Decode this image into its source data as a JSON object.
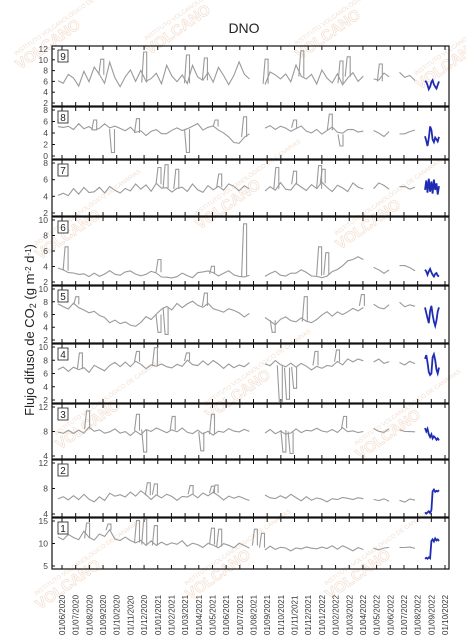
{
  "chart_data": {
    "type": "line",
    "title": "DNO",
    "ylabel_parts": [
      "Flujo difuso de CO",
      "2",
      " (g m",
      "-2",
      " d",
      "-1",
      ")"
    ],
    "x": {
      "tick_labels": [
        "01/06/2020",
        "01/07/2020",
        "01/08/2020",
        "01/09/2020",
        "01/10/2020",
        "01/11/2020",
        "01/12/2020",
        "01/01/2021",
        "01/02/2021",
        "01/03/2021",
        "01/04/2021",
        "01/05/2021",
        "01/06/2021",
        "01/07/2021",
        "01/08/2021",
        "01/09/2021",
        "01/10/2021",
        "01/11/2021",
        "01/12/2021",
        "01/01/2022",
        "01/02/2022",
        "01/03/2022",
        "01/04/2022",
        "01/05/2022",
        "01/06/2022",
        "01/07/2022",
        "01/08/2022",
        "01/09/2022",
        "01/10/2022"
      ],
      "start": "2020-06-01",
      "end": "2022-10-10"
    },
    "watermark_text": "INSTITUTO VOLCANOLÓGICO DE CANARIAS",
    "watermark_big": "VOLCANO",
    "recent_color": "#1f2bb3",
    "series_color": "#9a9a9a",
    "panels": [
      {
        "label": "9",
        "ylim": [
          2,
          12
        ],
        "yticks": [
          "12",
          "10",
          "8",
          "6",
          "4",
          "2"
        ],
        "recent": [
          6.2,
          6.0,
          5.5,
          4.8,
          5.2,
          6.0,
          6.3,
          5.6,
          5.2,
          4.9,
          5.5,
          6.1
        ],
        "base": [
          6.2,
          5.8,
          7.0,
          6.5,
          5.2,
          7.5,
          6.0,
          8.5,
          7.2,
          6.0,
          9.5,
          6.8,
          5.5,
          7.0,
          8.0,
          6.2,
          7.8,
          5.9,
          6.5,
          7.2,
          5.5,
          8.8,
          6.9,
          6.1,
          7.4,
          5.8,
          9.0,
          7.1,
          6.3,
          7.7,
          6.0,
          8.2,
          7.0,
          5.4,
          6.8,
          9.3,
          7.2,
          6.4,
          7.9,
          6.1,
          5.7,
          8.0,
          7.3,
          6.6,
          7.5,
          5.9,
          8.7,
          6.9,
          6.2,
          7.1,
          5.6,
          7.8,
          6.7,
          6.0,
          7.4,
          5.8,
          6.9,
          7.6,
          6.3,
          7.0,
          5.4,
          6.5,
          6.1,
          7.2,
          6.8,
          6.6,
          7.5,
          6.9,
          7.1,
          6.4
        ],
        "spikes": [
          [
            0.12,
            9.8
          ],
          [
            0.24,
            11
          ],
          [
            0.36,
            10.5
          ],
          [
            0.41,
            10
          ],
          [
            0.58,
            9.8
          ],
          [
            0.68,
            11.2
          ],
          [
            0.79,
            9.5
          ],
          [
            0.81,
            10.2
          ],
          [
            0.9,
            9
          ]
        ]
      },
      {
        "label": "8",
        "ylim": [
          0,
          8
        ],
        "yticks": [
          "8",
          "6",
          "4",
          "2",
          "0"
        ],
        "recent": [
          3.5,
          2.8,
          2.0,
          3.2,
          5.0,
          4.5,
          3.0,
          2.6,
          3.3,
          3.0,
          2.7,
          3.4
        ],
        "base": [
          5.0,
          4.8,
          5.2,
          4.7,
          5.5,
          4.9,
          5.1,
          4.4,
          4.8,
          5.3,
          4.6,
          5.0,
          4.5,
          4.2,
          4.9,
          4.0,
          4.4,
          3.8,
          4.3,
          4.7,
          4.1,
          3.9,
          4.5,
          4.8,
          4.2,
          4.6,
          4.9,
          5.2,
          4.4,
          4.8,
          5.0,
          4.6,
          4.1,
          3.5,
          2.8,
          2.5,
          3.4,
          4.0,
          4.5,
          4.2,
          4.7,
          4.9,
          4.4,
          5.0,
          4.6,
          4.3,
          4.8,
          5.1,
          4.5,
          4.2,
          4.6,
          4.0,
          4.4,
          4.8,
          4.1,
          3.8,
          4.3,
          4.5,
          4.0,
          4.2,
          3.9,
          4.4,
          4.1,
          3.7,
          4.3,
          4.6,
          4.0,
          3.8,
          4.2,
          4.4
        ],
        "spikes": [
          [
            0.1,
            6.0
          ],
          [
            0.15,
            1.0
          ],
          [
            0.22,
            6.2
          ],
          [
            0.36,
            1.0
          ],
          [
            0.44,
            6.0
          ],
          [
            0.52,
            6.5
          ],
          [
            0.66,
            6.0
          ],
          [
            0.76,
            6.9
          ],
          [
            0.79,
            2.0
          ]
        ]
      },
      {
        "label": "7",
        "ylim": [
          2,
          8
        ],
        "yticks": [
          "8",
          "6",
          "4",
          "2"
        ],
        "recent": [
          4.8,
          5.8,
          4.5,
          6.0,
          4.6,
          5.7,
          4.4,
          5.9,
          4.8,
          5.5,
          4.3,
          5.2
        ],
        "base": [
          4.2,
          4.5,
          4.1,
          4.8,
          4.3,
          4.9,
          4.4,
          4.6,
          5.0,
          4.5,
          5.3,
          4.8,
          4.6,
          5.1,
          4.7,
          5.5,
          4.9,
          5.2,
          4.6,
          5.4,
          4.8,
          5.0,
          4.5,
          4.9,
          5.2,
          4.7,
          5.5,
          5.0,
          4.6,
          5.3,
          4.9,
          5.1,
          4.7,
          5.4,
          5.0,
          4.6,
          5.2,
          4.8,
          5.5,
          5.1,
          4.7,
          5.3,
          4.9,
          5.6,
          5.0,
          4.8,
          5.4,
          5.1,
          4.6,
          5.2,
          4.9,
          5.5,
          5.0,
          4.7,
          5.3,
          5.1,
          4.8,
          5.6,
          5.2,
          5.0,
          5.4,
          4.9,
          5.5,
          5.1,
          4.8,
          5.3,
          5.0,
          5.2,
          4.9,
          5.1
        ],
        "spikes": [
          [
            0.28,
            7.2
          ],
          [
            0.3,
            7.5
          ],
          [
            0.33,
            7.0
          ],
          [
            0.45,
            6.5
          ],
          [
            0.61,
            7.2
          ],
          [
            0.66,
            6.8
          ],
          [
            0.73,
            7.4
          ],
          [
            0.74,
            7.0
          ]
        ]
      },
      {
        "label": "6",
        "ylim": [
          2,
          10
        ],
        "yticks": [
          "10",
          "8",
          "6",
          "4",
          "2"
        ],
        "recent": [
          3.8,
          3.6,
          3.2,
          3.6,
          3.9,
          3.5,
          3.2,
          3.0,
          3.3,
          3.4,
          3.1,
          3.0
        ],
        "base": [
          4.0,
          3.7,
          3.5,
          3.6,
          3.3,
          3.5,
          3.2,
          3.4,
          3.1,
          3.3,
          3.5,
          3.2,
          3.0,
          3.3,
          3.6,
          3.2,
          3.0,
          3.4,
          3.7,
          3.5,
          3.2,
          3.0,
          2.9,
          3.1,
          3.3,
          3.0,
          2.8,
          3.2,
          3.4,
          3.6,
          3.3,
          3.1,
          3.5,
          3.7,
          3.4,
          3.2,
          3.0,
          3.3,
          3.5,
          3.1,
          3.0,
          3.2,
          3.4,
          3.1,
          2.9,
          3.3,
          3.5,
          3.8,
          3.6,
          3.3,
          3.1,
          3.0,
          3.2,
          3.5,
          3.8,
          4.2,
          4.6,
          4.9,
          5.2,
          4.8,
          4.4,
          4.1,
          3.8,
          3.6,
          3.9,
          4.2,
          4.5,
          4.3,
          4.0,
          3.7
        ],
        "spikes": [
          [
            0.02,
            6.5
          ],
          [
            0.28,
            5.0
          ],
          [
            0.43,
            4.2
          ],
          [
            0.52,
            9.2
          ],
          [
            0.73,
            6.5
          ],
          [
            0.75,
            5.8
          ]
        ]
      },
      {
        "label": "5",
        "ylim": [
          2,
          10
        ],
        "yticks": [
          "10",
          "8",
          "6",
          "4",
          "2"
        ],
        "recent": [
          7.0,
          6.2,
          5.5,
          4.8,
          6.5,
          7.2,
          6.0,
          5.0,
          4.4,
          5.2,
          6.4,
          7.0
        ],
        "base": [
          7.5,
          7.2,
          6.8,
          7.4,
          6.9,
          6.5,
          6.0,
          6.4,
          5.8,
          5.5,
          5.0,
          5.3,
          4.8,
          5.2,
          4.6,
          4.4,
          5.0,
          5.6,
          5.2,
          6.0,
          6.5,
          7.0,
          6.6,
          7.4,
          7.0,
          7.6,
          7.9,
          7.5,
          7.2,
          7.6,
          7.0,
          6.6,
          6.2,
          6.8,
          6.4,
          6.0,
          5.6,
          6.0,
          5.4,
          5.0,
          5.6,
          5.2,
          4.8,
          5.4,
          5.8,
          5.3,
          4.9,
          5.5,
          5.0,
          4.6,
          5.2,
          5.8,
          6.2,
          5.8,
          6.4,
          6.0,
          6.6,
          7.0,
          6.6,
          7.2,
          6.8,
          7.4,
          7.0,
          6.6,
          7.2,
          6.8,
          7.5,
          7.0,
          7.4,
          7.1
        ],
        "spikes": [
          [
            0.05,
            8.5
          ],
          [
            0.28,
            3.5
          ],
          [
            0.3,
            3.2
          ],
          [
            0.41,
            9.0
          ],
          [
            0.6,
            3.5
          ],
          [
            0.69,
            8.5
          ],
          [
            0.85,
            8.8
          ]
        ]
      },
      {
        "label": "4",
        "ylim": [
          2,
          10
        ],
        "yticks": [
          "10",
          "8",
          "6",
          "4",
          "2"
        ],
        "recent": [
          8.0,
          8.5,
          7.5,
          6.2,
          5.8,
          6.0,
          8.2,
          8.6,
          7.8,
          6.5,
          6.0,
          6.8
        ],
        "base": [
          6.5,
          6.8,
          6.2,
          7.0,
          6.6,
          6.9,
          6.4,
          7.2,
          6.8,
          6.5,
          7.0,
          7.4,
          6.9,
          7.3,
          6.8,
          7.6,
          7.1,
          6.7,
          7.3,
          7.0,
          7.5,
          7.1,
          6.8,
          7.4,
          7.0,
          7.7,
          7.2,
          6.9,
          7.5,
          7.1,
          7.6,
          7.2,
          6.8,
          7.3,
          6.9,
          7.4,
          7.0,
          7.6,
          7.2,
          6.8,
          7.3,
          7.0,
          7.5,
          7.1,
          6.8,
          7.2,
          6.9,
          7.4,
          7.0,
          6.7,
          7.1,
          6.8,
          7.3,
          7.0,
          7.6,
          7.2,
          7.8,
          7.4,
          7.9,
          7.5,
          8.0,
          7.6,
          7.9,
          7.5,
          7.8,
          7.4,
          7.7,
          7.3,
          7.6,
          7.4
        ],
        "spikes": [
          [
            0.06,
            8.8
          ],
          [
            0.22,
            9.0
          ],
          [
            0.27,
            9.5
          ],
          [
            0.36,
            8.8
          ],
          [
            0.62,
            2.2
          ],
          [
            0.64,
            2.5
          ],
          [
            0.66,
            4.0
          ],
          [
            0.72,
            9.0
          ],
          [
            0.78,
            9.2
          ]
        ]
      },
      {
        "label": "3",
        "ylim": [
          4,
          12
        ],
        "yticks": [
          "12",
          "8",
          "4"
        ],
        "recent": [
          8.5,
          8.0,
          8.4,
          7.6,
          7.2,
          7.6,
          7.0,
          7.3,
          7.1,
          6.8,
          7.0,
          6.7
        ],
        "base": [
          8.0,
          7.8,
          8.3,
          7.6,
          8.1,
          7.7,
          8.4,
          7.9,
          8.2,
          7.6,
          8.0,
          8.5,
          7.8,
          8.2,
          7.6,
          8.1,
          7.7,
          8.3,
          7.9,
          8.5,
          8.0,
          7.6,
          8.2,
          7.8,
          8.4,
          8.0,
          7.7,
          8.3,
          7.9,
          8.1,
          7.6,
          8.2,
          7.8,
          8.4,
          8.0,
          7.7,
          8.2,
          7.9,
          8.5,
          8.1,
          7.8,
          8.3,
          7.9,
          8.2,
          7.7,
          8.0,
          8.4,
          7.8,
          8.2,
          7.9,
          8.3,
          8.0,
          7.7,
          8.2,
          7.9,
          8.5,
          8.1,
          8.3,
          7.9,
          8.2,
          8.0,
          8.4,
          8.1,
          7.8,
          8.2,
          7.9,
          8.1,
          7.8,
          8.0,
          7.9
        ],
        "spikes": [
          [
            0.08,
            11.0
          ],
          [
            0.22,
            10.5
          ],
          [
            0.24,
            5.0
          ],
          [
            0.32,
            10.2
          ],
          [
            0.4,
            5.2
          ],
          [
            0.43,
            10.5
          ],
          [
            0.63,
            5.0
          ],
          [
            0.65,
            4.8
          ],
          [
            0.8,
            10.2
          ]
        ]
      },
      {
        "label": "2",
        "ylim": [
          4,
          14
        ],
        "yticks": [
          "12",
          "8",
          "4"
        ],
        "recent": [
          4.8,
          4.6,
          4.8,
          5.0,
          4.7,
          5.2,
          8.5,
          8.8,
          8.4,
          8.6,
          8.5,
          8.7
        ],
        "base": [
          7.0,
          7.5,
          6.8,
          7.8,
          7.2,
          8.0,
          7.4,
          6.9,
          7.6,
          7.1,
          8.2,
          7.5,
          7.9,
          7.3,
          8.1,
          7.6,
          8.4,
          7.8,
          7.2,
          7.9,
          7.5,
          8.3,
          7.7,
          7.1,
          7.8,
          7.4,
          8.0,
          7.3,
          7.9,
          7.6,
          8.2,
          7.5,
          7.0,
          7.7,
          7.3,
          7.9,
          7.4,
          7.0,
          7.6,
          7.2,
          7.8,
          7.4,
          7.0,
          7.5,
          7.2,
          7.7,
          7.3,
          6.9,
          7.5,
          7.1,
          7.6,
          7.2,
          6.9,
          7.4,
          7.0,
          7.5,
          7.2,
          6.8,
          7.3,
          7.0,
          7.4,
          7.1,
          6.8,
          7.2,
          7.0,
          7.3,
          7.1,
          6.9,
          7.2,
          7.0
        ],
        "spikes": [
          [
            0.25,
            10.0
          ],
          [
            0.27,
            9.8
          ],
          [
            0.37,
            9.5
          ],
          [
            0.43,
            9.4
          ],
          [
            0.44,
            9.6
          ]
        ]
      },
      {
        "label": "1",
        "ylim": [
          5,
          15
        ],
        "yticks": [
          "15",
          "10",
          "5"
        ],
        "recent": [
          7.0,
          7.2,
          7.0,
          7.3,
          7.1,
          10.5,
          10.8,
          10.4,
          11.0,
          10.6,
          10.8,
          10.5
        ],
        "base": [
          11.5,
          10.8,
          12.0,
          11.2,
          10.6,
          12.4,
          11.0,
          10.4,
          11.8,
          11.2,
          12.6,
          11.0,
          10.6,
          11.4,
          10.9,
          10.2,
          10.8,
          9.8,
          10.4,
          9.6,
          10.2,
          9.4,
          10.0,
          9.7,
          10.3,
          9.5,
          10.1,
          9.8,
          9.5,
          10.2,
          9.8,
          9.4,
          10.0,
          9.6,
          9.2,
          9.8,
          9.4,
          9.0,
          9.6,
          9.2,
          8.8,
          9.4,
          9.0,
          9.5,
          9.2,
          8.8,
          9.3,
          8.9,
          9.4,
          9.0,
          8.7,
          9.2,
          8.8,
          9.3,
          8.9,
          9.5,
          9.1,
          8.8,
          9.3,
          9.0,
          9.4,
          9.1,
          8.8,
          9.2,
          9.0,
          9.3,
          9.1,
          8.9,
          9.2,
          9.0
        ],
        "spikes": [
          [
            0.08,
            14.0
          ],
          [
            0.14,
            13.8
          ],
          [
            0.22,
            14.5
          ],
          [
            0.24,
            14.8
          ],
          [
            0.27,
            13.5
          ],
          [
            0.43,
            13.0
          ],
          [
            0.45,
            12.8
          ],
          [
            0.55,
            12.8
          ],
          [
            0.57,
            12.0
          ]
        ]
      }
    ]
  }
}
